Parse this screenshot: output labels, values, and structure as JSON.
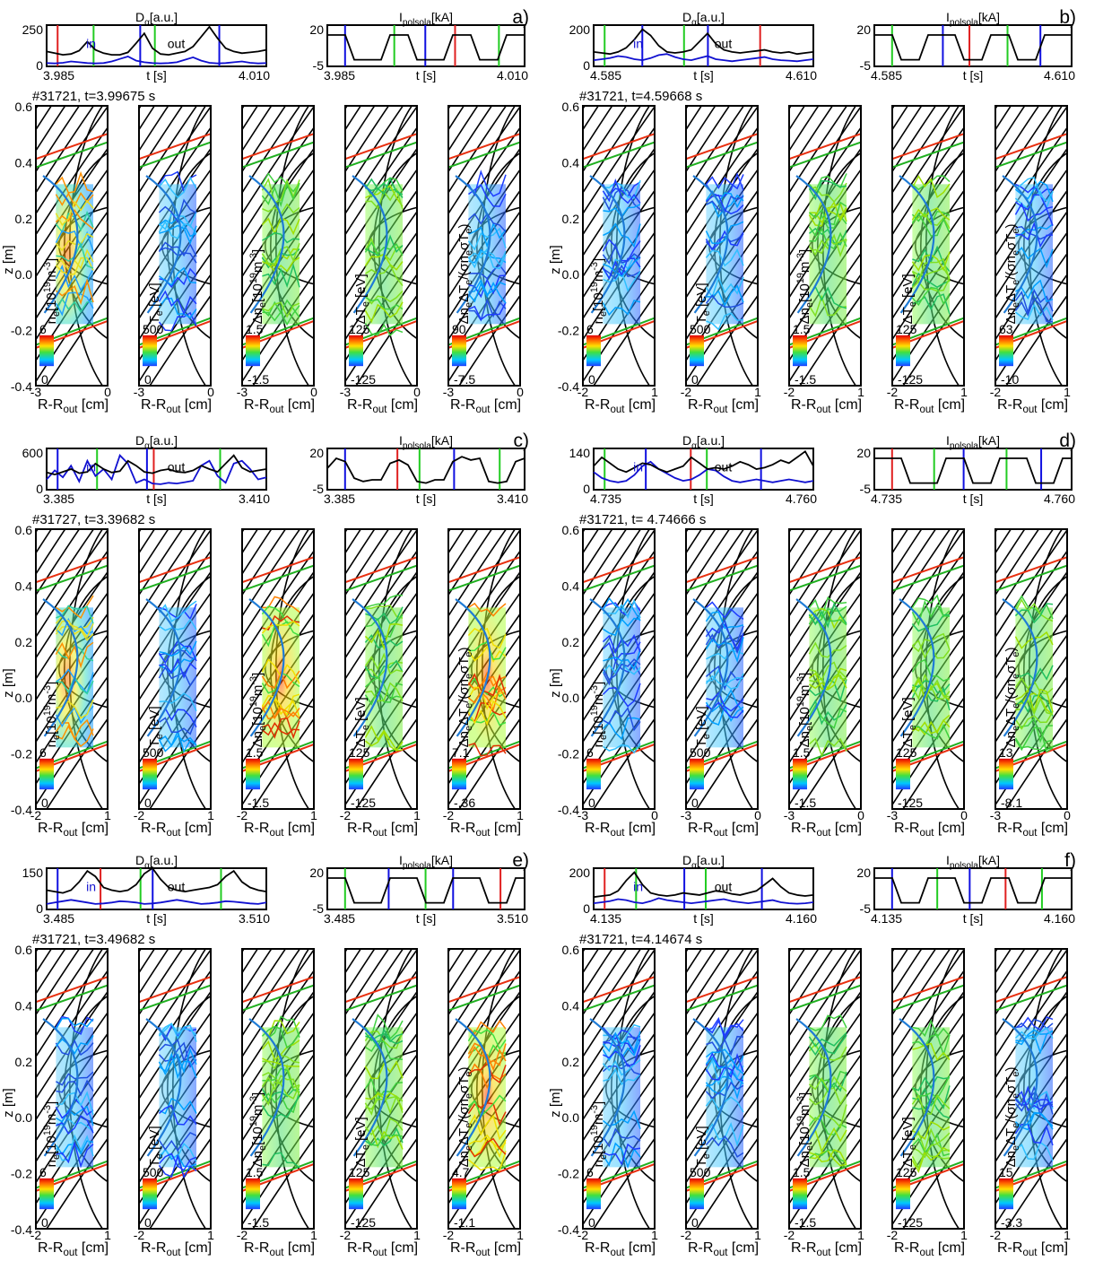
{
  "colors": {
    "line_black": "#000000",
    "trace_blue": "#1010d0",
    "marker_green": "#22cc22",
    "marker_red": "#e02020",
    "marker_blue": "#1010e0",
    "sep_orange": "#e83010",
    "sep_green": "#20b020",
    "curve_blue": "#1e7bd6"
  },
  "chart_data": [
    {
      "panel_label": "a)",
      "shot_text": "#31721, t=3.99675 s",
      "dalpha": {
        "title": "Dα[a.u.]",
        "ylim": [
          0,
          250
        ],
        "yticks": [
          "250",
          "0"
        ],
        "xticks": [
          "3.985",
          "4.010"
        ],
        "xlabel": "t [s]",
        "labels": [
          "in",
          "out"
        ],
        "black": [
          90,
          80,
          70,
          75,
          95,
          150,
          100,
          80,
          70,
          70,
          85,
          140,
          200,
          110,
          75,
          70,
          80,
          90,
          120,
          180,
          240,
          170,
          110,
          90,
          80,
          85,
          90,
          100
        ],
        "blue": [
          20,
          18,
          22,
          30,
          25,
          20,
          18,
          20,
          30,
          45,
          60,
          35,
          25,
          20,
          18,
          20,
          25,
          40,
          55,
          35,
          22,
          18,
          20,
          25,
          30,
          22,
          18,
          20
        ]
      },
      "ipol": {
        "title": "Ipolsola[kA]",
        "ylim": [
          -5,
          20
        ],
        "yticks": [
          "20",
          "-5"
        ],
        "xticks": [
          "3.985",
          "4.010"
        ],
        "xlabel": "t [s]",
        "black": [
          14,
          14,
          14,
          -1,
          -1,
          -1,
          -1,
          14,
          14,
          14,
          -1,
          -1,
          -1,
          -1,
          14,
          14,
          14,
          -1,
          -1,
          -1,
          14,
          14,
          14
        ]
      },
      "maps": {
        "ylabel": "z [m]",
        "ylim": [
          -0.4,
          0.6
        ],
        "yticks": [
          "0.6",
          "0.4",
          "0.2",
          "0.0",
          "-0.2",
          "-0.4"
        ],
        "xlabel": "R-Rout [cm]",
        "xticks": [
          [
            "-3",
            "0"
          ],
          [
            "-3",
            "0"
          ],
          [
            "-3",
            "0"
          ],
          [
            "-3",
            "0"
          ],
          [
            "-3",
            "0"
          ]
        ],
        "quantities": [
          "ne[1019m-3]",
          "Te [eV]",
          "Δne[1019m-3]",
          "ΔTe [eV]",
          "ΔneΔTe/(σneσTe)"
        ],
        "colorbar_max": [
          "6",
          "500",
          "1.5",
          "125",
          "90"
        ],
        "colorbar_min": [
          "0",
          "0",
          "-1.5",
          "-125",
          "-7.5"
        ]
      }
    },
    {
      "panel_label": "b)",
      "shot_text": "#31721, t=4.59668 s",
      "dalpha": {
        "title": "Dα[a.u.]",
        "ylim": [
          0,
          200
        ],
        "yticks": [
          "200",
          "0"
        ],
        "xticks": [
          "4.585",
          "4.610"
        ],
        "xlabel": "t [s]",
        "labels": [
          "in",
          "out"
        ],
        "black": [
          70,
          65,
          60,
          70,
          90,
          130,
          180,
          150,
          100,
          70,
          65,
          70,
          80,
          120,
          160,
          110,
          80,
          70,
          65,
          70,
          75,
          80,
          70,
          65,
          70,
          60,
          65,
          70
        ],
        "blue": [
          30,
          35,
          40,
          50,
          45,
          35,
          30,
          40,
          55,
          60,
          45,
          35,
          30,
          40,
          50,
          35,
          30,
          25,
          30,
          35,
          40,
          45,
          35,
          30,
          28,
          25,
          30,
          35
        ]
      },
      "ipol": {
        "title": "Ipolsola[kA]",
        "ylim": [
          -5,
          20
        ],
        "yticks": [
          "20",
          "-5"
        ],
        "xticks": [
          "4.585",
          "4.610"
        ],
        "xlabel": "t [s]",
        "black": [
          14,
          14,
          14,
          -1,
          -1,
          -1,
          14,
          14,
          14,
          14,
          -1,
          -1,
          -1,
          14,
          14,
          14,
          -1,
          -1,
          -1,
          14,
          14,
          14,
          14
        ]
      },
      "maps": {
        "ylabel": "z [m]",
        "ylim": [
          -0.4,
          0.6
        ],
        "yticks": [
          "0.6",
          "0.4",
          "0.2",
          "0.0",
          "-0.2",
          "-0.4"
        ],
        "xlabel": "R-Rout [cm]",
        "xticks": [
          [
            "-2",
            "1"
          ],
          [
            "-2",
            "1"
          ],
          [
            "-2",
            "1"
          ],
          [
            "-2",
            "1"
          ],
          [
            "-2",
            "1"
          ]
        ],
        "quantities": [
          "ne[1019m-3]",
          "Te [eV]",
          "Δne[1019m-3]",
          "ΔTe [eV]",
          "ΔneΔTe/(σneσTe)"
        ],
        "colorbar_max": [
          "6",
          "500",
          "1.5",
          "125",
          "63"
        ],
        "colorbar_min": [
          "0",
          "0",
          "-1.5",
          "-125",
          "-10"
        ]
      }
    },
    {
      "panel_label": "c)",
      "shot_text": "#31727, t=3.39682 s",
      "dalpha": {
        "title": "Dα[a.u.]",
        "ylim": [
          0,
          600
        ],
        "yticks": [
          "600",
          "0"
        ],
        "xticks": [
          "3.385",
          "3.410"
        ],
        "xlabel": "t [s]",
        "labels": [
          "in",
          "out"
        ],
        "black": [
          250,
          220,
          260,
          300,
          240,
          260,
          380,
          300,
          250,
          270,
          420,
          350,
          260,
          240,
          280,
          300,
          260,
          250,
          280,
          350,
          300,
          260,
          380,
          500,
          320,
          260,
          280,
          300
        ],
        "blue": [
          150,
          280,
          180,
          350,
          120,
          420,
          200,
          300,
          150,
          500,
          380,
          100,
          150,
          90,
          80,
          100,
          90,
          110,
          130,
          350,
          420,
          200,
          100,
          380,
          420,
          300,
          150,
          180
        ]
      },
      "ipol": {
        "title": "Ipolsola[kA]",
        "ylim": [
          -5,
          20
        ],
        "yticks": [
          "20",
          "-5"
        ],
        "xticks": [
          "3.385",
          "3.410"
        ],
        "xlabel": "t [s]",
        "black": [
          8,
          14,
          12,
          2,
          0,
          1,
          1,
          11,
          13,
          10,
          0,
          -1,
          1,
          1,
          12,
          15,
          13,
          14,
          0,
          -1,
          0,
          12,
          14
        ]
      },
      "maps": {
        "ylabel": "z [m]",
        "ylim": [
          -0.4,
          0.6
        ],
        "yticks": [
          "0.6",
          "0.4",
          "0.2",
          "0.0",
          "-0.2",
          "-0.4"
        ],
        "xlabel": "R-Rout [cm]",
        "xticks": [
          [
            "-2",
            "1"
          ],
          [
            "-2",
            "1"
          ],
          [
            "-2",
            "1"
          ],
          [
            "-2",
            "1"
          ],
          [
            "-2",
            "1"
          ]
        ],
        "quantities": [
          "ne[1019m-3]",
          "Te [eV]",
          "Δne[1019m-3]",
          "ΔTe [eV]",
          "ΔneΔTe/(σneσTe)"
        ],
        "colorbar_max": [
          "6",
          "500",
          "1.5",
          "125",
          "7.1"
        ],
        "colorbar_min": [
          "0",
          "0",
          "-1.5",
          "-125",
          "-.36"
        ]
      }
    },
    {
      "panel_label": "d)",
      "shot_text": "#31721, t= 4.74666 s",
      "dalpha": {
        "title": "Dα[a.u.]",
        "ylim": [
          0,
          140
        ],
        "yticks": [
          "140",
          "0"
        ],
        "xticks": [
          "4.735",
          "4.760"
        ],
        "xlabel": "t [s]",
        "labels": [
          "in",
          "out"
        ],
        "black": [
          80,
          110,
          90,
          70,
          60,
          75,
          90,
          85,
          70,
          60,
          70,
          80,
          110,
          90,
          70,
          75,
          70,
          80,
          95,
          85,
          70,
          75,
          85,
          100,
          90,
          110,
          130,
          80
        ],
        "blue": [
          60,
          40,
          30,
          25,
          30,
          50,
          80,
          95,
          70,
          55,
          40,
          30,
          35,
          50,
          70,
          65,
          45,
          30,
          25,
          30,
          35,
          30,
          25,
          30,
          35,
          30,
          25,
          30
        ]
      },
      "ipol": {
        "title": "Ipolsola[kA]",
        "ylim": [
          -5,
          20
        ],
        "yticks": [
          "20",
          "-5"
        ],
        "xticks": [
          "4.735",
          "4.760"
        ],
        "xlabel": "t [s]",
        "black": [
          14,
          14,
          14,
          14,
          -1,
          -1,
          -1,
          -1,
          14,
          14,
          14,
          -1,
          -1,
          -1,
          14,
          14,
          14,
          14,
          -1,
          -1,
          -1,
          14,
          14
        ]
      },
      "maps": {
        "ylabel": "z [m]",
        "ylim": [
          -0.4,
          0.6
        ],
        "yticks": [
          "0.6",
          "0.4",
          "0.2",
          "0.0",
          "-0.2",
          "-0.4"
        ],
        "xlabel": "R-Rout [cm]",
        "xticks": [
          [
            "-3",
            "0"
          ],
          [
            "-3",
            "0"
          ],
          [
            "-3",
            "0"
          ],
          [
            "-3",
            "0"
          ],
          [
            "-3",
            "0"
          ]
        ],
        "quantities": [
          "ne[1019m-3]",
          "Te [eV]",
          "Δne[1019m-3]",
          "ΔTe [eV]",
          "ΔneΔTe/(σneσTe)"
        ],
        "colorbar_max": [
          "6",
          "500",
          "1.5",
          "125",
          "13"
        ],
        "colorbar_min": [
          "0",
          "0",
          "-1.5",
          "-125",
          "-8.1"
        ]
      }
    },
    {
      "panel_label": "e)",
      "shot_text": "#31721, t=3.49682 s",
      "dalpha": {
        "title": "Dα[a.u.]",
        "ylim": [
          0,
          150
        ],
        "yticks": [
          "150",
          "0"
        ],
        "xticks": [
          "3.485",
          "3.510"
        ],
        "xlabel": "t [s]",
        "labels": [
          "in",
          "out"
        ],
        "black": [
          70,
          65,
          60,
          70,
          100,
          140,
          120,
          80,
          70,
          65,
          70,
          90,
          130,
          150,
          110,
          80,
          70,
          65,
          70,
          75,
          80,
          90,
          120,
          140,
          100,
          80,
          70,
          65
        ],
        "blue": [
          20,
          25,
          30,
          35,
          30,
          25,
          20,
          22,
          25,
          30,
          28,
          25,
          20,
          22,
          25,
          30,
          35,
          30,
          25,
          20,
          22,
          25,
          30,
          28,
          25,
          22,
          20,
          25
        ]
      },
      "ipol": {
        "title": "Ipolsola[kA]",
        "ylim": [
          -5,
          20
        ],
        "yticks": [
          "20",
          "-5"
        ],
        "xticks": [
          "3.485",
          "3.510"
        ],
        "xlabel": "t [s]",
        "black": [
          14,
          14,
          14,
          -1,
          -1,
          -1,
          -1,
          14,
          14,
          14,
          14,
          -1,
          -1,
          -1,
          14,
          14,
          14,
          14,
          -1,
          -1,
          -1,
          14,
          14
        ]
      },
      "maps": {
        "ylabel": "z [m]",
        "ylim": [
          -0.4,
          0.6
        ],
        "yticks": [
          "0.6",
          "0.4",
          "0.2",
          "0.0",
          "-0.2",
          "-0.4"
        ],
        "xlabel": "R-Rout [cm]",
        "xticks": [
          [
            "-2",
            "1"
          ],
          [
            "-2",
            "1"
          ],
          [
            "-2",
            "1"
          ],
          [
            "-2",
            "1"
          ],
          [
            "-2",
            "1"
          ]
        ],
        "quantities": [
          "ne[1019m-3]",
          "Te [eV]",
          "Δne[1019m-3]",
          "ΔTe [eV]",
          "ΔneΔTe/(σneσTe)"
        ],
        "colorbar_max": [
          "6",
          "500",
          "1.5",
          "125",
          "4.7"
        ],
        "colorbar_min": [
          "0",
          "0",
          "-1.5",
          "-125",
          "-1.1"
        ]
      }
    },
    {
      "panel_label": "f)",
      "shot_text": "#31721, t=4.14674 s",
      "dalpha": {
        "title": "Dα[a.u.]",
        "ylim": [
          0,
          200
        ],
        "yticks": [
          "200",
          "0"
        ],
        "xticks": [
          "4.135",
          "4.160"
        ],
        "xlabel": "t [s]",
        "labels": [
          "in",
          "out"
        ],
        "black": [
          60,
          65,
          70,
          90,
          140,
          180,
          120,
          80,
          70,
          65,
          70,
          80,
          75,
          70,
          80,
          90,
          85,
          75,
          70,
          80,
          90,
          120,
          150,
          110,
          80,
          70,
          65,
          70
        ],
        "blue": [
          30,
          35,
          40,
          50,
          45,
          35,
          30,
          40,
          55,
          45,
          40,
          35,
          30,
          35,
          40,
          45,
          50,
          40,
          35,
          30,
          35,
          40,
          45,
          35,
          30,
          28,
          30,
          35
        ]
      },
      "ipol": {
        "title": "Ipolsola[kA]",
        "ylim": [
          -5,
          20
        ],
        "yticks": [
          "20",
          "-5"
        ],
        "xticks": [
          "4.135",
          "4.160"
        ],
        "xlabel": "t [s]",
        "black": [
          14,
          14,
          14,
          -1,
          -1,
          -1,
          14,
          14,
          14,
          14,
          -1,
          -1,
          -1,
          14,
          14,
          14,
          -1,
          -1,
          -1,
          14,
          14,
          14,
          14
        ]
      },
      "maps": {
        "ylabel": "z [m]",
        "ylim": [
          -0.4,
          0.6
        ],
        "yticks": [
          "0.6",
          "0.4",
          "0.2",
          "0.0",
          "-0.2",
          "-0.4"
        ],
        "xlabel": "R-Rout [cm]",
        "xticks": [
          [
            "-2",
            "1"
          ],
          [
            "-2",
            "1"
          ],
          [
            "-2",
            "1"
          ],
          [
            "-2",
            "1"
          ],
          [
            "-2",
            "1"
          ]
        ],
        "quantities": [
          "ne[1019m-3]",
          "Te [eV]",
          "Δne[1019m-3]",
          "ΔTe [eV]",
          "ΔneΔTe/(σneσTe)"
        ],
        "colorbar_max": [
          "6",
          "500",
          "1.5",
          "125",
          "15"
        ],
        "colorbar_min": [
          "0",
          "0",
          "-1.5",
          "-125",
          "-3.3"
        ]
      }
    }
  ]
}
